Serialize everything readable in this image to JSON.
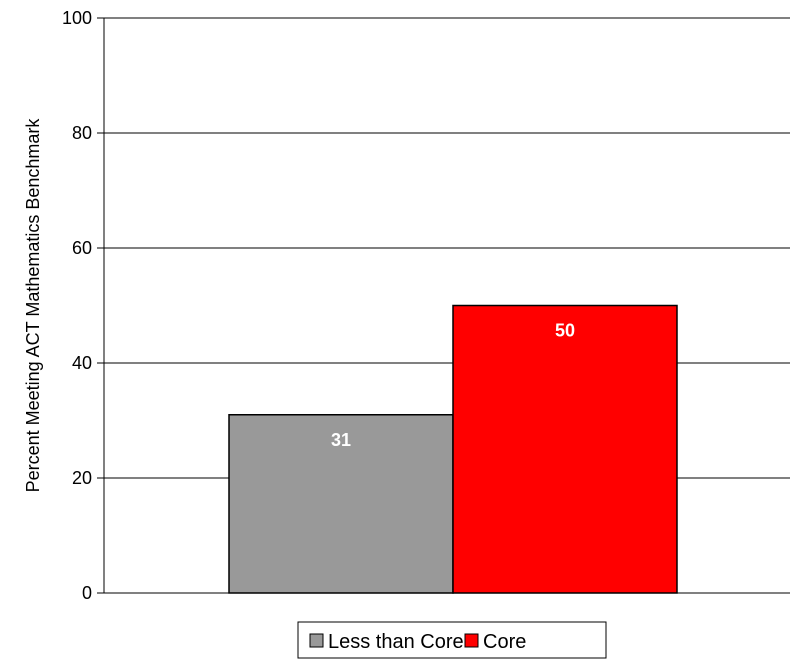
{
  "chart_data": {
    "type": "bar",
    "categories": [
      "Less than Core",
      "Core"
    ],
    "values": [
      31,
      50
    ],
    "colors": [
      "#999999",
      "#ff0000"
    ],
    "ylabel": "Percent Meeting ACT Mathematics Benchmark",
    "ylim": [
      0,
      100
    ],
    "yticks": [
      0,
      20,
      40,
      60,
      80,
      100
    ],
    "ytick_labels": [
      "0",
      "20",
      "40",
      "60",
      "80",
      "100"
    ],
    "data_labels": [
      "31",
      "50"
    ],
    "grid": true,
    "legend": {
      "position": "bottom",
      "entries": [
        "Less than Core",
        "Core"
      ]
    }
  }
}
